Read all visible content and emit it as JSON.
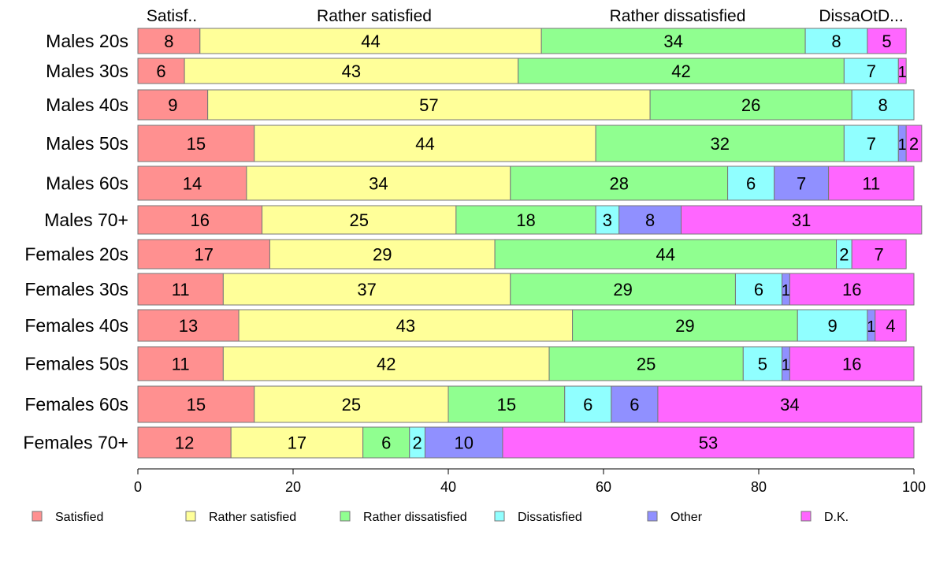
{
  "chart_data": {
    "type": "bar",
    "orientation": "horizontal",
    "stacked": true,
    "categories": [
      "Males 20s",
      "Males 30s",
      "Males 40s",
      "Males 50s",
      "Males 60s",
      "Males 70+",
      "Females 20s",
      "Females 30s",
      "Females 40s",
      "Females 50s",
      "Females 60s",
      "Females 70+"
    ],
    "series": [
      {
        "name": "Satisfied",
        "color": "#ff9090",
        "values": [
          8,
          6,
          9,
          15,
          14,
          16,
          17,
          11,
          13,
          11,
          15,
          12
        ]
      },
      {
        "name": "Rather satisfied",
        "color": "#ffff99",
        "values": [
          44,
          43,
          57,
          44,
          34,
          25,
          29,
          37,
          43,
          42,
          25,
          17
        ]
      },
      {
        "name": "Rather dissatisfied",
        "color": "#90ff90",
        "values": [
          34,
          42,
          26,
          32,
          28,
          18,
          44,
          29,
          29,
          25,
          15,
          6
        ]
      },
      {
        "name": "Dissatisfied",
        "color": "#90ffff",
        "values": [
          8,
          7,
          8,
          7,
          6,
          3,
          2,
          6,
          9,
          5,
          6,
          2
        ]
      },
      {
        "name": "Other",
        "color": "#9090ff",
        "values": [
          0,
          0,
          0,
          1,
          7,
          8,
          0,
          1,
          1,
          1,
          6,
          10
        ]
      },
      {
        "name": "D.K.",
        "color": "#ff66ff",
        "values": [
          5,
          1,
          0,
          2,
          11,
          31,
          7,
          16,
          4,
          16,
          34,
          53
        ]
      }
    ],
    "top_labels": [
      "Satisf..",
      "Rather satisfied",
      "Rather dissatisfied",
      "DissaOtD..."
    ],
    "x_ticks": [
      "0",
      "20",
      "40",
      "60",
      "80",
      "100"
    ],
    "xlim": [
      0,
      100
    ],
    "legend_position": "bottom",
    "grid": false
  }
}
